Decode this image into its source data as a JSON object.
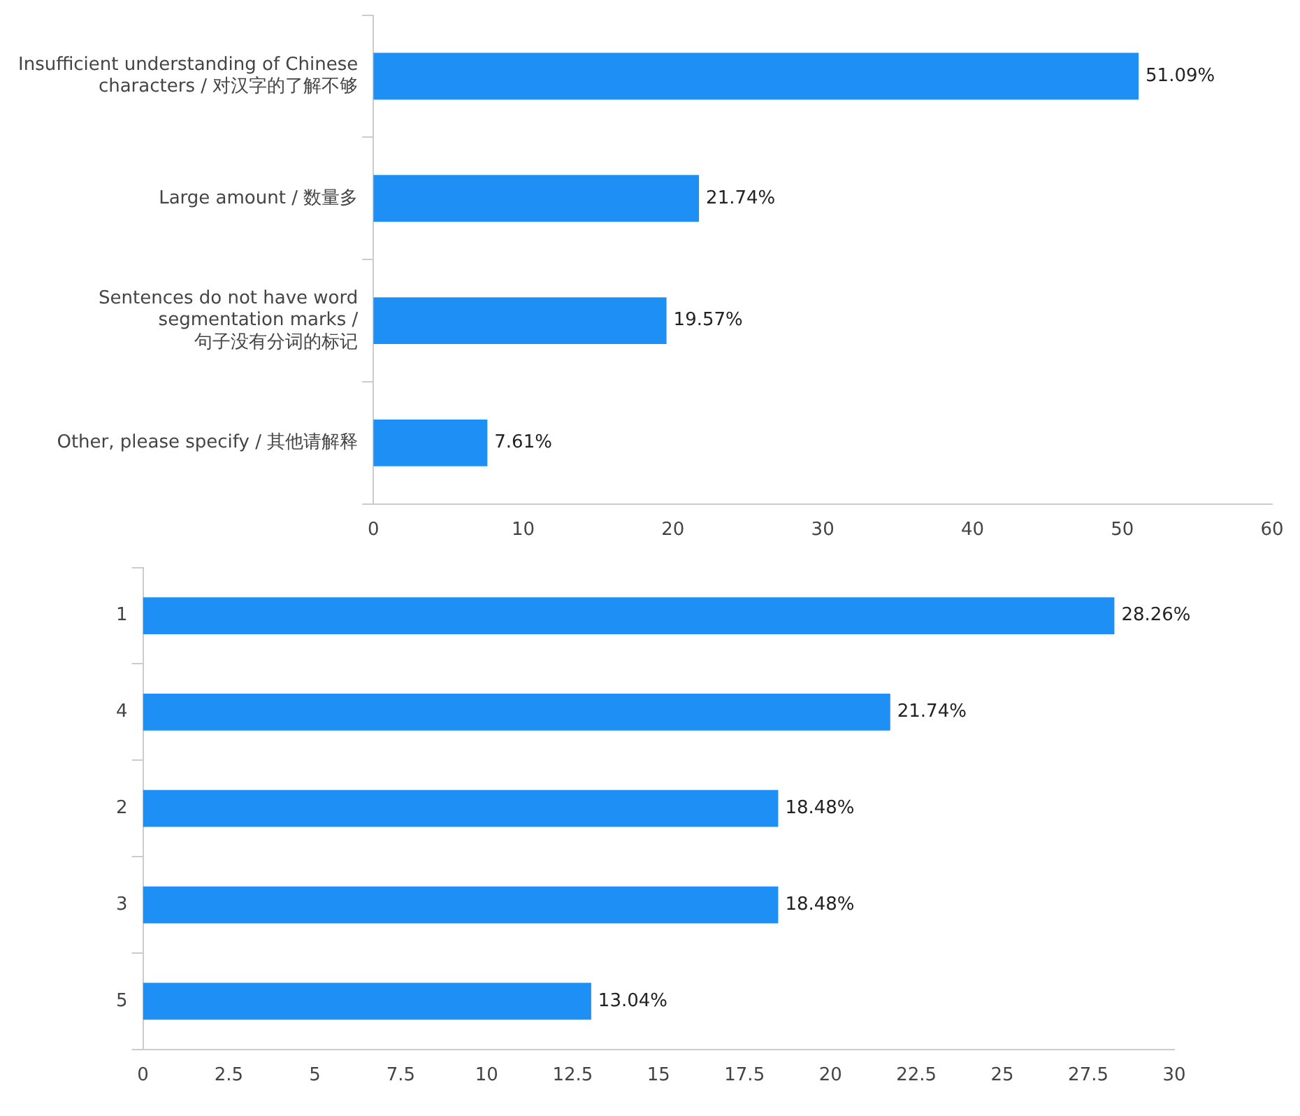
{
  "chart_data": [
    {
      "type": "bar",
      "orientation": "horizontal",
      "categories": [
        "Insufficient understanding of Chinese characters / 对汉字的了解不够",
        "Large amount / 数量多",
        "Sentences do not have word segmentation marks / 句子没有分词的标记",
        "Other, please specify / 其他请解释"
      ],
      "values": [
        51.09,
        21.74,
        19.57,
        7.61
      ],
      "value_labels": [
        "51.09%",
        "21.74%",
        "19.57%",
        "7.61%"
      ],
      "color": "#1e90f5",
      "xlim": [
        0,
        60
      ],
      "xticks": [
        0,
        10,
        20,
        30,
        40,
        50,
        60
      ],
      "grid": false,
      "legend": false
    },
    {
      "type": "bar",
      "orientation": "horizontal",
      "categories": [
        "1",
        "4",
        "2",
        "3",
        "5"
      ],
      "values": [
        28.26,
        21.74,
        18.48,
        18.48,
        13.04
      ],
      "value_labels": [
        "28.26%",
        "21.74%",
        "18.48%",
        "18.48%",
        "13.04%"
      ],
      "color": "#1e90f5",
      "xlim": [
        0,
        30
      ],
      "xticks": [
        0,
        2.5,
        5,
        7.5,
        10,
        12.5,
        15,
        17.5,
        20,
        22.5,
        25,
        27.5,
        30
      ],
      "grid": false,
      "legend": false
    }
  ]
}
